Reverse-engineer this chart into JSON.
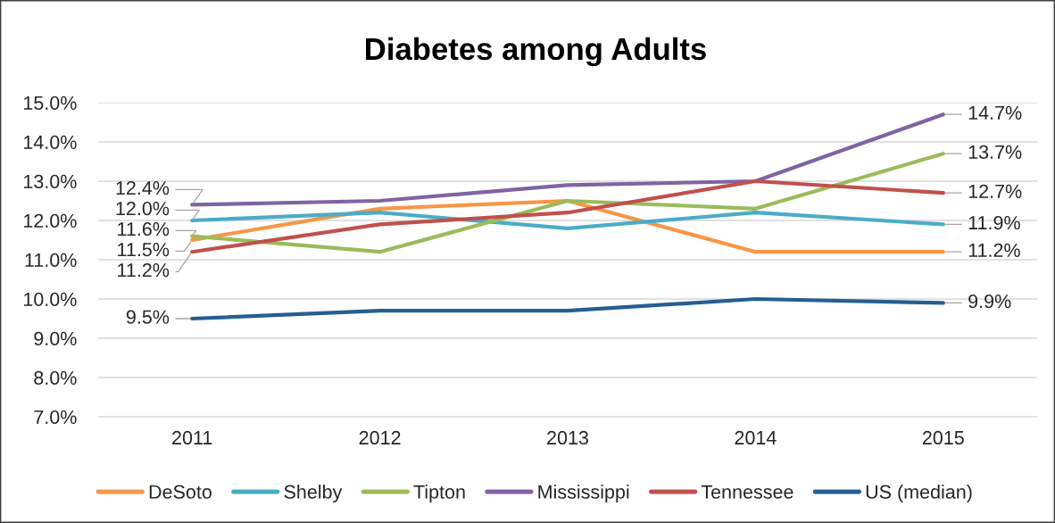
{
  "chart_data": {
    "type": "line",
    "title": "Diabetes among Adults",
    "categories": [
      "2011",
      "2012",
      "2013",
      "2014",
      "2015"
    ],
    "series": [
      {
        "name": "DeSoto",
        "color": "#f79646",
        "values": [
          11.5,
          12.3,
          12.5,
          11.2,
          11.2
        ],
        "value_labels": [
          "11.5%",
          null,
          null,
          null,
          "11.2%"
        ]
      },
      {
        "name": "Shelby",
        "color": "#4bacc6",
        "values": [
          12.0,
          12.2,
          11.8,
          12.2,
          11.9
        ],
        "value_labels": [
          "12.0%",
          null,
          null,
          null,
          "11.9%"
        ]
      },
      {
        "name": "Tipton",
        "color": "#9bbb59",
        "values": [
          11.6,
          11.2,
          12.5,
          12.3,
          13.7
        ],
        "value_labels": [
          "11.6%",
          null,
          null,
          null,
          "13.7%"
        ]
      },
      {
        "name": "Mississippi",
        "color": "#8064a2",
        "values": [
          12.4,
          12.5,
          12.9,
          13.0,
          14.7
        ],
        "value_labels": [
          "12.4%",
          null,
          null,
          null,
          "14.7%"
        ]
      },
      {
        "name": "Tennessee",
        "color": "#c0504d",
        "values": [
          11.2,
          11.9,
          12.2,
          13.0,
          12.7
        ],
        "value_labels": [
          "11.2%",
          null,
          null,
          null,
          "12.7%"
        ]
      },
      {
        "name": "US (median)",
        "color": "#255e91",
        "values": [
          9.5,
          9.7,
          9.7,
          10.0,
          9.9
        ],
        "value_labels": [
          "9.5%",
          null,
          null,
          null,
          "9.9%"
        ]
      }
    ],
    "ylim": [
      7,
      15
    ],
    "yticks": [
      {
        "value": 7,
        "label": "7.0%"
      },
      {
        "value": 8,
        "label": "8.0%"
      },
      {
        "value": 9,
        "label": "9.0%"
      },
      {
        "value": 10,
        "label": "10.0%"
      },
      {
        "value": 11,
        "label": "11.0%"
      },
      {
        "value": 12,
        "label": "12.0%"
      },
      {
        "value": 13,
        "label": "13.0%"
      },
      {
        "value": 14,
        "label": "14.0%"
      },
      {
        "value": 15,
        "label": "15.0%"
      }
    ],
    "grid": "y",
    "legend": "bottom"
  }
}
